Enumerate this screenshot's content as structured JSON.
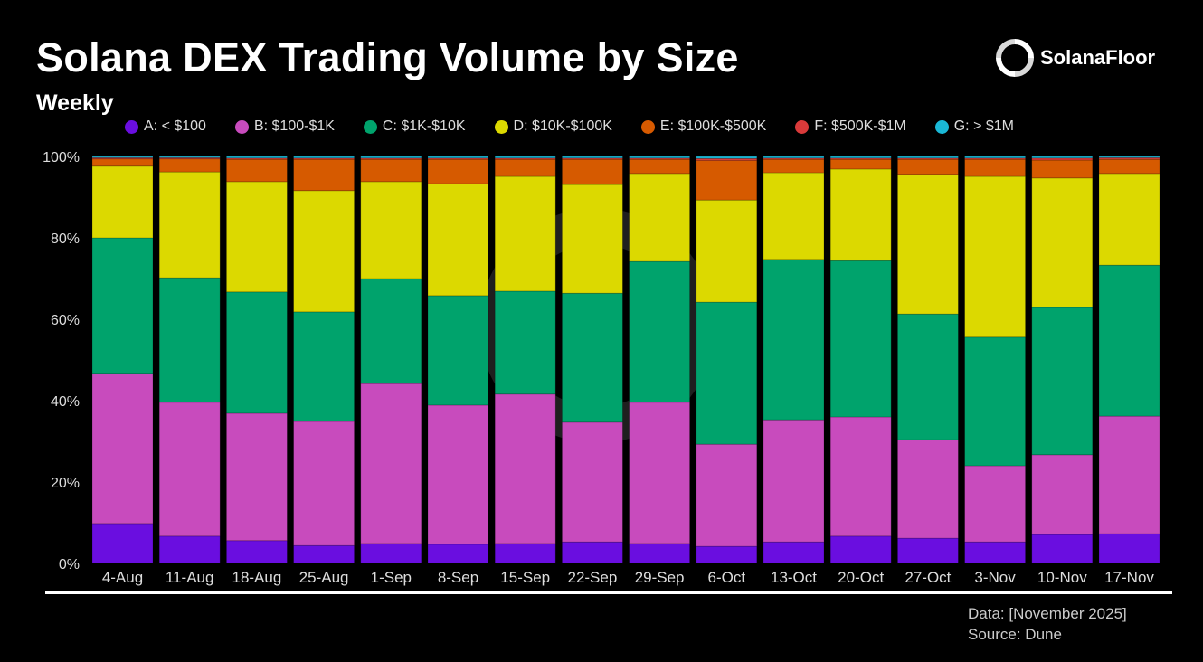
{
  "header": {
    "title": "Solana DEX Trading Volume by Size",
    "subtitle": "Weekly"
  },
  "brand": {
    "name": "SolanaFloor",
    "icon": "solanafloor-logo-icon"
  },
  "footer": {
    "data_note": "Data: [November 2025]",
    "source": "Source: Dune"
  },
  "chart_data": {
    "type": "bar",
    "stacked": true,
    "normalized": true,
    "title": "Solana DEX Trading Volume by Size",
    "subtitle": "Weekly",
    "xlabel": "",
    "ylabel": "",
    "ylim": [
      0,
      100
    ],
    "yticks": [
      "0%",
      "20%",
      "40%",
      "60%",
      "80%",
      "100%"
    ],
    "grid": false,
    "legend_position": "top",
    "categories": [
      "4-Aug",
      "11-Aug",
      "18-Aug",
      "25-Aug",
      "1-Sep",
      "8-Sep",
      "15-Sep",
      "22-Sep",
      "29-Sep",
      "6-Oct",
      "13-Oct",
      "20-Oct",
      "27-Oct",
      "3-Nov",
      "10-Nov",
      "17-Nov"
    ],
    "series": [
      {
        "name": "A: < $100",
        "color": "#6a0ee0",
        "values": [
          9.8,
          6.7,
          5.6,
          4.4,
          4.9,
          4.7,
          4.9,
          5.3,
          4.9,
          4.2,
          5.3,
          6.7,
          6.2,
          5.3,
          7.1,
          7.3
        ]
      },
      {
        "name": "B: $100-$1K",
        "color": "#c84bbd",
        "values": [
          36.9,
          32.9,
          31.3,
          30.5,
          39.3,
          34.2,
          36.7,
          29.4,
          34.7,
          25.1,
          30.0,
          29.3,
          24.2,
          18.7,
          19.6,
          28.9
        ]
      },
      {
        "name": "C: $1K-$10K",
        "color": "#00a36c",
        "values": [
          33.3,
          30.6,
          29.8,
          26.9,
          25.8,
          26.9,
          25.3,
          31.7,
          34.6,
          34.9,
          39.4,
          38.4,
          30.9,
          31.6,
          36.2,
          37.1
        ]
      },
      {
        "name": "D: $10K-$100K",
        "color": "#dcd900",
        "values": [
          17.6,
          26.0,
          27.1,
          29.8,
          23.8,
          27.5,
          28.2,
          26.7,
          21.6,
          25.1,
          21.3,
          22.5,
          34.3,
          39.5,
          31.8,
          22.5
        ]
      },
      {
        "name": "E: $100K-$500K",
        "color": "#d65a00",
        "values": [
          1.8,
          3.2,
          5.5,
          7.7,
          5.5,
          6.0,
          4.2,
          6.2,
          3.5,
          9.7,
          3.3,
          2.4,
          3.7,
          4.2,
          4.4,
          3.5
        ]
      },
      {
        "name": "F: $500K-$1M",
        "color": "#d93a3a",
        "values": [
          0.3,
          0.3,
          0.3,
          0.3,
          0.3,
          0.3,
          0.3,
          0.3,
          0.3,
          0.5,
          0.3,
          0.3,
          0.3,
          0.3,
          0.5,
          0.4
        ]
      },
      {
        "name": "G: > $1M",
        "color": "#1ab8d6",
        "values": [
          0.3,
          0.3,
          0.4,
          0.4,
          0.4,
          0.4,
          0.4,
          0.4,
          0.4,
          0.5,
          0.4,
          0.4,
          0.4,
          0.4,
          0.4,
          0.3
        ]
      }
    ]
  }
}
